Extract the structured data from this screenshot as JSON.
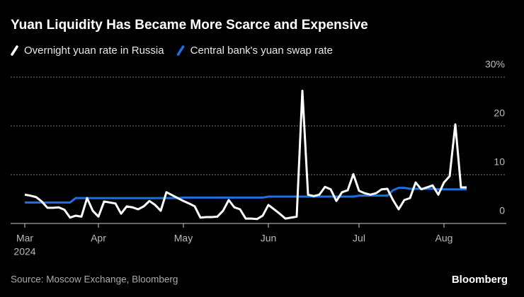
{
  "chart_data": {
    "type": "line",
    "title": "Yuan Liquidity Has Became More Scarce and Expensive",
    "source": "Source: Moscow Exchange, Bloomberg",
    "brand": "Bloomberg",
    "year": "2024",
    "categories": [
      "Mar",
      null,
      null,
      null,
      null,
      null,
      null,
      null,
      null,
      null,
      null,
      null,
      null,
      "Apr",
      null,
      null,
      null,
      null,
      null,
      null,
      null,
      null,
      null,
      null,
      null,
      null,
      null,
      null,
      "May",
      null,
      null,
      null,
      null,
      null,
      null,
      null,
      null,
      null,
      null,
      null,
      null,
      null,
      null,
      "Jun",
      null,
      null,
      null,
      null,
      null,
      null,
      null,
      null,
      null,
      null,
      null,
      null,
      null,
      null,
      null,
      "Jul",
      null,
      null,
      null,
      null,
      null,
      null,
      null,
      null,
      null,
      null,
      null,
      null,
      null,
      null,
      "Aug",
      null,
      null,
      null,
      null
    ],
    "series": [
      {
        "name": "Overnight yuan rate in Russia",
        "color": "#ffffff",
        "values": [
          5.9,
          5.7,
          5.4,
          4.5,
          3.2,
          3.2,
          3.3,
          2.8,
          1.2,
          1.6,
          1.4,
          5.2,
          2.6,
          1.4,
          4.5,
          4.3,
          4.1,
          2.0,
          3.5,
          3.3,
          2.9,
          3.5,
          4.6,
          3.8,
          2.6,
          6.4,
          5.8,
          5.2,
          4.6,
          4.1,
          3.5,
          1.2,
          1.3,
          1.3,
          1.4,
          2.6,
          4.8,
          3.3,
          2.9,
          1.0,
          1.0,
          0.9,
          1.6,
          3.8,
          2.9,
          2.0,
          1.0,
          1.2,
          1.4,
          27.2,
          5.9,
          5.6,
          5.9,
          7.5,
          7.0,
          4.6,
          6.4,
          6.8,
          10.1,
          6.7,
          6.2,
          5.9,
          6.2,
          7.0,
          7.1,
          4.8,
          2.9,
          4.8,
          5.2,
          8.4,
          7.0,
          7.4,
          7.8,
          5.9,
          8.4,
          9.7,
          20.3,
          7.4,
          7.4
        ]
      },
      {
        "name": "Central bank's yuan swap rate",
        "color": "#1f6fe5",
        "values": [
          4.3,
          4.3,
          4.3,
          4.3,
          4.3,
          4.3,
          4.3,
          4.3,
          4.3,
          5.2,
          5.2,
          5.2,
          5.2,
          5.2,
          5.2,
          5.2,
          5.2,
          5.2,
          5.2,
          5.2,
          5.2,
          5.2,
          5.2,
          5.2,
          5.2,
          5.2,
          5.2,
          5.2,
          5.3,
          5.3,
          5.3,
          5.3,
          5.3,
          5.3,
          5.3,
          5.3,
          5.3,
          5.3,
          5.3,
          5.3,
          5.3,
          5.3,
          5.3,
          5.5,
          5.5,
          5.5,
          5.5,
          5.5,
          5.5,
          5.5,
          5.5,
          5.5,
          5.5,
          5.5,
          5.5,
          5.5,
          5.5,
          5.5,
          5.5,
          5.7,
          5.7,
          5.7,
          5.7,
          5.7,
          5.7,
          6.8,
          7.3,
          7.3,
          7.1,
          7.1,
          7.1,
          7.1,
          7.1,
          7.0,
          7.0,
          7.0,
          7.0,
          7.0,
          7.0
        ]
      }
    ],
    "ylim": [
      0,
      30
    ],
    "yticks": [
      0,
      10,
      20,
      {
        "value": 30,
        "label": "30%"
      }
    ],
    "grid": true
  }
}
